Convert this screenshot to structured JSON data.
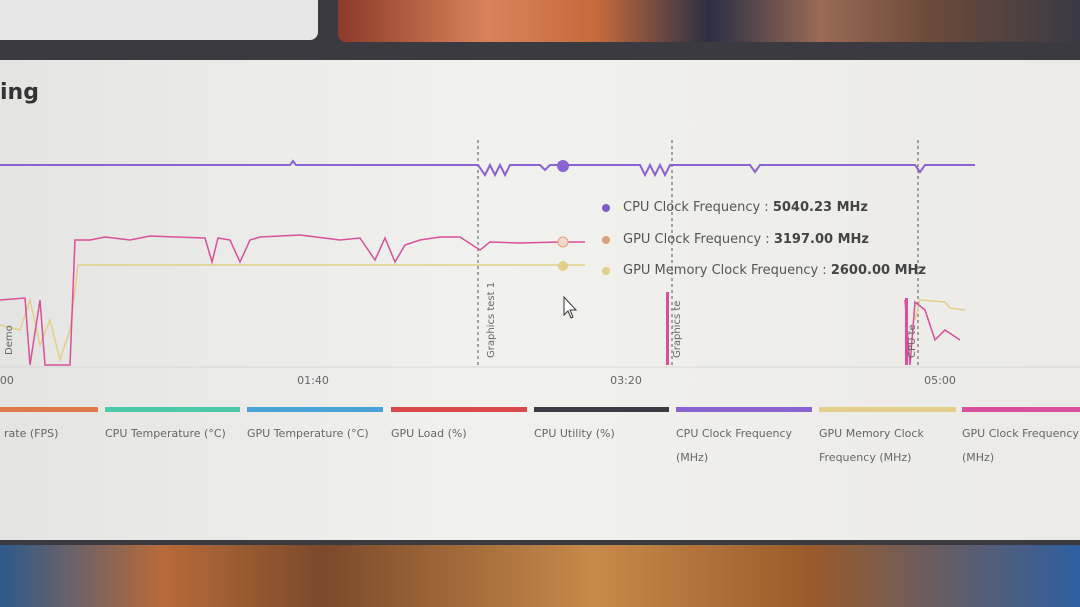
{
  "header": {
    "title": "ing"
  },
  "x_axis": {
    "ticks": [
      ":00",
      "01:40",
      "03:20",
      "05:00"
    ]
  },
  "markers": [
    "Demo",
    "Graphics test 1",
    "Graphics te",
    "CPU te"
  ],
  "tooltip": [
    {
      "label": "CPU Clock Frequency :",
      "value": "5040.23 MHz",
      "color": "#7b5cc9"
    },
    {
      "label": "GPU Clock Frequency :",
      "value": "3197.00 MHz",
      "color": "#e0a080"
    },
    {
      "label": "GPU Memory Clock Frequency :",
      "value": "2600.00 MHz",
      "color": "#e3cf8a"
    }
  ],
  "legend": [
    {
      "label": "rate (FPS)",
      "color": "#e07a4a"
    },
    {
      "label": "CPU Temperature (°C)",
      "color": "#4cc9a8"
    },
    {
      "label": "GPU Temperature (°C)",
      "color": "#4aa3d8"
    },
    {
      "label": "GPU Load (%)",
      "color": "#d9494a"
    },
    {
      "label": "CPU Utility (%)",
      "color": "#3b3b44"
    },
    {
      "label": "CPU Clock Frequency (MHz)",
      "color": "#8a63d2"
    },
    {
      "label": "GPU Memory Clock Frequency (MHz)",
      "color": "#e3cf8a"
    },
    {
      "label": "GPU Clock Frequency (MHz)",
      "color": "#d94f9a"
    }
  ]
}
